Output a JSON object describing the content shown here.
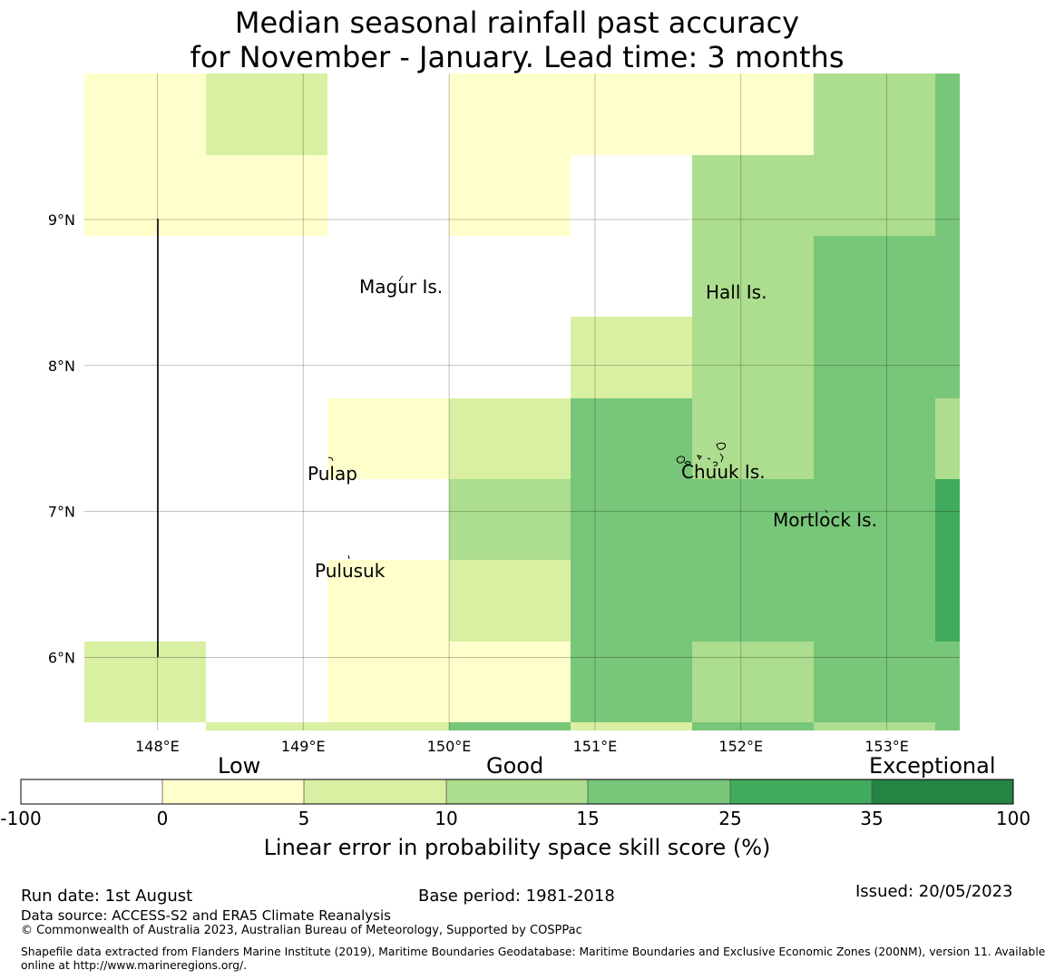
{
  "title": {
    "line1": "Median seasonal rainfall past accuracy",
    "line2": "for November - January. Lead time: 3 months"
  },
  "map": {
    "lon_range": [
      147.5,
      153.5
    ],
    "lat_range": [
      5.5,
      10.0
    ],
    "x_ticks": [
      "148°E",
      "149°E",
      "150°E",
      "151°E",
      "152°E",
      "153°E"
    ],
    "y_ticks": [
      "9°N",
      "8°N",
      "7°N",
      "6°N"
    ],
    "gridlines": true,
    "places": [
      "Magur Is.",
      "Hall Is.",
      "Pulap",
      "Chuuk Is.",
      "Mortlock Is.",
      "Pulusuk"
    ]
  },
  "colorbar": {
    "categories": [
      "Low",
      "Good",
      "Exceptional"
    ],
    "tick_labels": [
      "-100",
      "0",
      "5",
      "10",
      "15",
      "25",
      "35",
      "100"
    ],
    "colors": [
      "#ffffff",
      "#ffffcc",
      "#d9f0a3",
      "#addd8e",
      "#78c679",
      "#41ab5d",
      "#238443"
    ],
    "label": "Linear error in probability space skill score (%)"
  },
  "footer": {
    "run_date": "Run date: 1st August",
    "base_period": "Base period: 1981-2018",
    "issued": "Issued: 20/05/2023",
    "data_source": "Data source: ACCESS-S2 and ERA5 Climate Reanalysis",
    "copyright": "© Commonwealth of Australia 2023, Australian Bureau of Meteorology, Supported by COSPPac",
    "shapefile_line1": "Shapefile data extracted from Flanders Marine Institute (2019), Maritime Boundaries Geodatabase: Maritime Boundaries and Exclusive Economic Zones (200NM), version 11. Available",
    "shapefile_line2": "online at http://www.marineregions.org/."
  }
}
